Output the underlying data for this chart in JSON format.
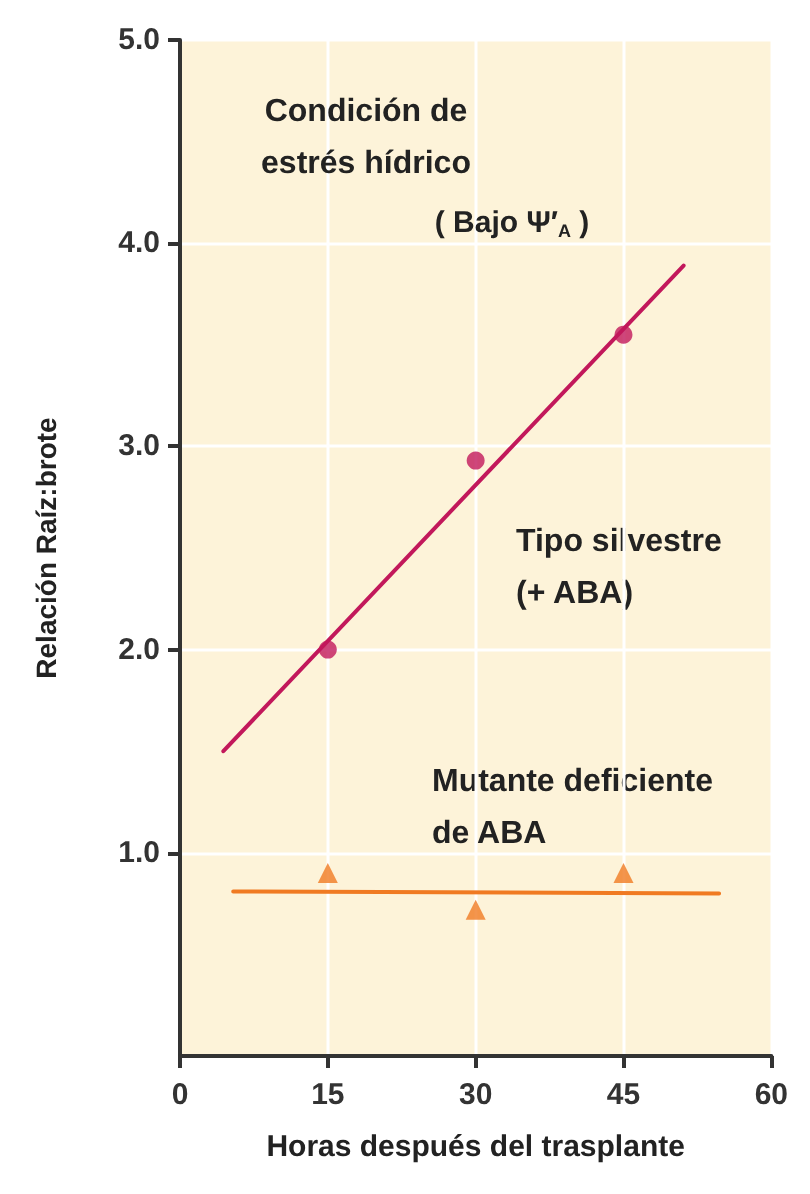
{
  "chart_data": {
    "type": "scatter",
    "title": "Condición de estrés hídrico",
    "subtitle": "( Bajo Ψ′$_{A}$ )",
    "xlabel": "Horas después del trasplante",
    "ylabel": "Relación Raíz:brote",
    "xlim": [
      0,
      60
    ],
    "xticks": [
      0,
      15,
      30,
      45,
      60
    ],
    "ylim": [
      0,
      5
    ],
    "yticks": [
      {
        "value": 1,
        "label": "1.0"
      },
      {
        "value": 2,
        "label": "2.0"
      },
      {
        "value": 3,
        "label": "3.0"
      },
      {
        "value": 4,
        "label": "4.0"
      },
      {
        "value": 5,
        "label": "5.0"
      }
    ],
    "grid": true,
    "legend": false,
    "series": [
      {
        "name": "Tipo silvestre (+ ABA)",
        "marker": "circle",
        "color": "#c2185b",
        "x": [
          15,
          30,
          45
        ],
        "values": [
          2.0,
          2.93,
          3.55
        ]
      },
      {
        "type": "line",
        "color": "#c2185b",
        "x": [
          4.4,
          51.1
        ],
        "values": [
          1.5,
          3.89
        ]
      },
      {
        "name": "Mutante deficiente de ABA",
        "marker": "triangle",
        "color": "#f07a22",
        "x": [
          15,
          30,
          45
        ],
        "values": [
          0.9,
          0.72,
          0.9
        ]
      },
      {
        "type": "line",
        "color": "#f07a22",
        "x": [
          5.4,
          54.7
        ],
        "values": [
          0.81,
          0.8
        ]
      }
    ]
  }
}
